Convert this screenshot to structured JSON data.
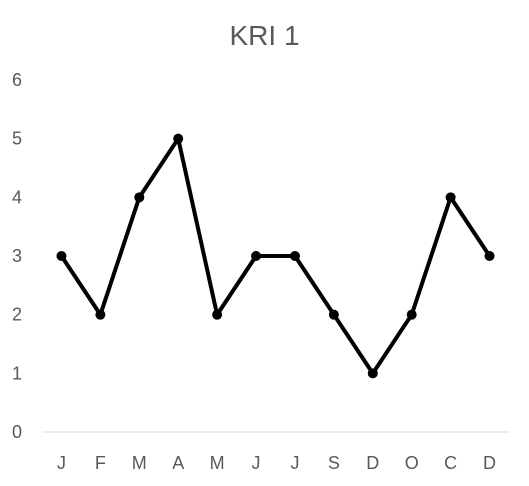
{
  "chart_data": {
    "type": "line",
    "title": "KRI 1",
    "xlabel": "",
    "ylabel": "",
    "categories": [
      "J",
      "F",
      "M",
      "A",
      "M",
      "J",
      "J",
      "S",
      "D",
      "O",
      "C",
      "D"
    ],
    "series": [
      {
        "values": [
          3,
          2,
          4,
          5,
          2,
          3,
          3,
          2,
          1,
          2,
          4,
          3
        ],
        "color": "#000000"
      }
    ],
    "ylim": [
      0,
      6
    ],
    "yticks": [
      0,
      1,
      2,
      3,
      4,
      5,
      6
    ],
    "grid": false,
    "legend": "none",
    "axis_color": "#d9d9d9",
    "label_color": "#595959"
  }
}
